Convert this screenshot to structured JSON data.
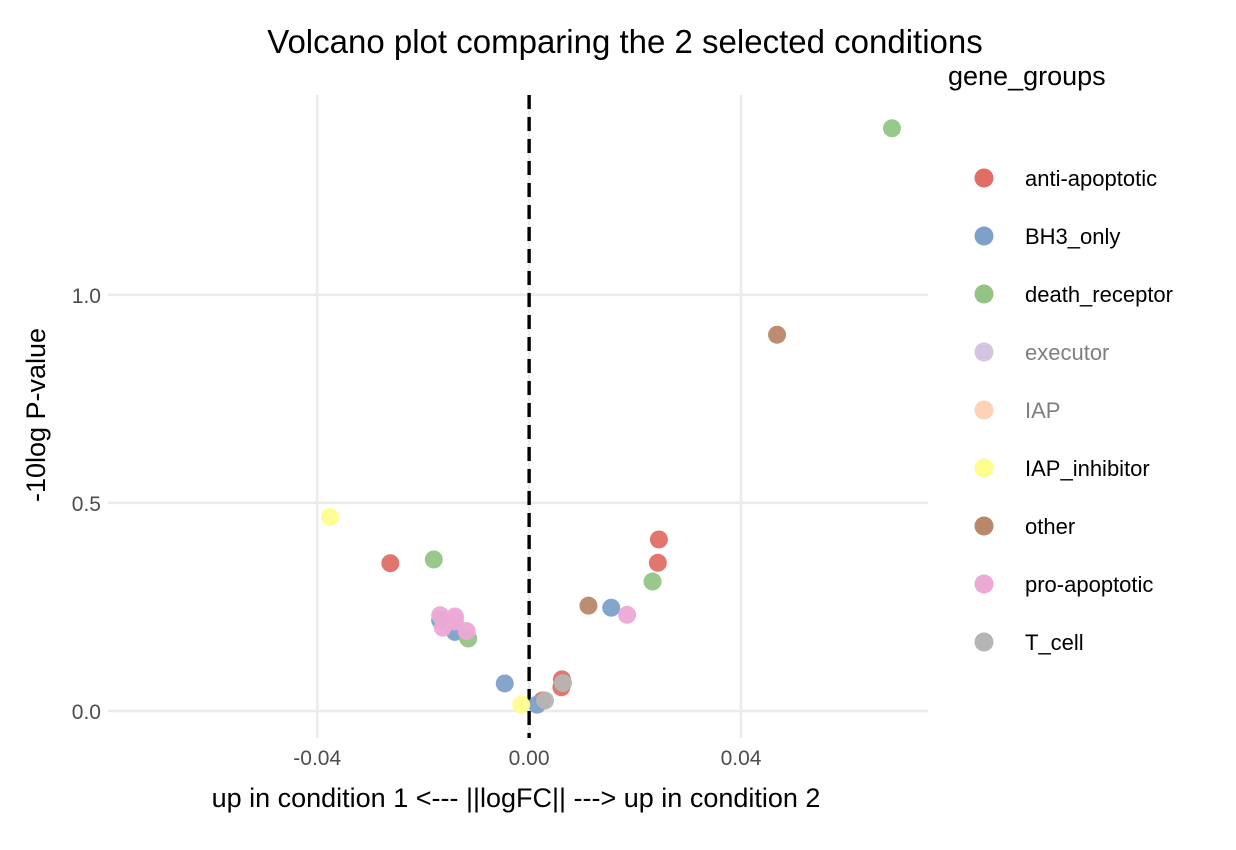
{
  "chart_data": {
    "type": "scatter",
    "title": "Volcano plot comparing the 2 selected conditions",
    "xlabel": "up in condition 1 <--- ||logFC|| ---> up in condition 2",
    "ylabel": "-10log P-value",
    "xlim": [
      -0.0795,
      0.0753
    ],
    "ylim": [
      -0.065,
      1.48
    ],
    "x_ticks": [
      {
        "value": -0.04,
        "label": "-0.04"
      },
      {
        "value": 0.0,
        "label": "0.00"
      },
      {
        "value": 0.04,
        "label": "0.04"
      }
    ],
    "y_ticks": [
      {
        "value": 0.0,
        "label": "0.0"
      },
      {
        "value": 0.5,
        "label": "0.5"
      },
      {
        "value": 1.0,
        "label": "1.0"
      }
    ],
    "reference_line": {
      "x": 0.0,
      "style": "dashed"
    },
    "legend": {
      "title": "gene_groups",
      "position": "right",
      "entries": [
        {
          "name": "anti-apoptotic",
          "color": "#e06e65",
          "muted": false
        },
        {
          "name": "BH3_only",
          "color": "#7ea1c9",
          "muted": false
        },
        {
          "name": "death_receptor",
          "color": "#93c486",
          "muted": false
        },
        {
          "name": "executor",
          "color": "#d5c4e1",
          "muted": true
        },
        {
          "name": "IAP",
          "color": "#fdd2b6",
          "muted": true
        },
        {
          "name": "IAP_inhibitor",
          "color": "#fefe8e",
          "muted": false
        },
        {
          "name": "other",
          "color": "#b9876a",
          "muted": false
        },
        {
          "name": "pro-apoptotic",
          "color": "#eca9d6",
          "muted": false
        },
        {
          "name": "T_cell",
          "color": "#b5b5b5",
          "muted": false
        }
      ]
    },
    "series": [
      {
        "name": "anti-apoptotic",
        "color": "#e06e65",
        "points": [
          [
            -0.0262,
            0.355
          ],
          [
            0.0245,
            0.412
          ],
          [
            0.0243,
            0.356
          ],
          [
            0.0062,
            0.076
          ],
          [
            0.0061,
            0.057
          ],
          [
            0.0025,
            0.025
          ]
        ]
      },
      {
        "name": "BH3_only",
        "color": "#7ea1c9",
        "points": [
          [
            -0.0168,
            0.218
          ],
          [
            -0.014,
            0.19
          ],
          [
            -0.0046,
            0.066
          ],
          [
            0.0155,
            0.248
          ],
          [
            0.0015,
            0.015
          ]
        ]
      },
      {
        "name": "death_receptor",
        "color": "#93c486",
        "points": [
          [
            0.0685,
            1.4
          ],
          [
            -0.018,
            0.364
          ],
          [
            -0.0115,
            0.174
          ],
          [
            0.0233,
            0.311
          ]
        ]
      },
      {
        "name": "other",
        "color": "#b9876a",
        "points": [
          [
            0.0468,
            0.904
          ],
          [
            0.0112,
            0.253
          ]
        ]
      },
      {
        "name": "pro-apoptotic",
        "color": "#eca9d6",
        "points": [
          [
            -0.0168,
            0.23
          ],
          [
            -0.0163,
            0.2
          ],
          [
            -0.014,
            0.227
          ],
          [
            -0.014,
            0.215
          ],
          [
            -0.0118,
            0.192
          ],
          [
            0.0185,
            0.231
          ]
        ]
      },
      {
        "name": "T_cell",
        "color": "#b5b5b5",
        "points": [
          [
            0.0064,
            0.067
          ],
          [
            0.003,
            0.025
          ]
        ]
      },
      {
        "name": "IAP_inhibitor",
        "color": "#fefe8e",
        "points": [
          [
            -0.0376,
            0.466
          ],
          [
            -0.0015,
            0.015
          ]
        ]
      }
    ]
  }
}
